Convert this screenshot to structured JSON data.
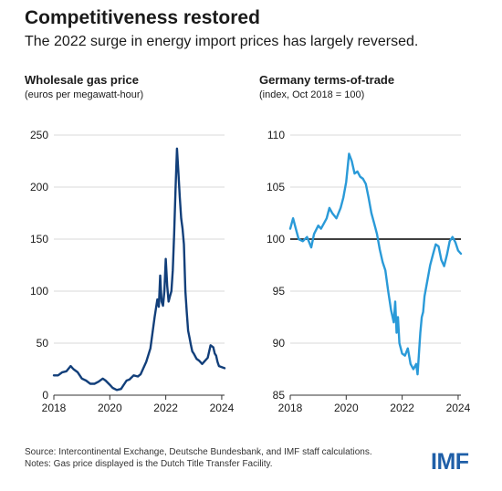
{
  "header": {
    "title": "Competitiveness restored",
    "subtitle": "The 2022 surge in energy import prices has largely reversed."
  },
  "footer": {
    "source": "Source: Intercontinental Exchange, Deutsche Bundesbank, and IMF staff calculations.",
    "notes": "Notes: Gas price displayed is the Dutch Title Transfer Facility.",
    "logo": "IMF"
  },
  "colors": {
    "gas_line": "#123f7a",
    "tot_line": "#2a9ad8",
    "reference_line": "#000000",
    "grid": "#d9d9d9"
  },
  "chart_data": [
    {
      "type": "line",
      "title": "Wholesale gas price",
      "subtitle": "(euros per megawatt-hour)",
      "xlim": [
        2018,
        2024.1
      ],
      "ylim": [
        0,
        250
      ],
      "xticks": [
        "2018",
        "2020",
        "2022",
        "2024"
      ],
      "yticks": [
        "0",
        "50",
        "100",
        "150",
        "200",
        "250"
      ],
      "grid": true,
      "series": [
        {
          "x": [
            2018.0,
            2018.15,
            2018.3,
            2018.45,
            2018.6,
            2018.7,
            2018.85,
            2019.0,
            2019.15,
            2019.3,
            2019.45,
            2019.6,
            2019.75,
            2019.85,
            2020.0,
            2020.1,
            2020.25,
            2020.4,
            2020.5,
            2020.6,
            2020.7,
            2020.85,
            2021.0,
            2021.1,
            2021.2,
            2021.3,
            2021.45,
            2021.6,
            2021.7,
            2021.75,
            2021.8,
            2021.85,
            2021.9,
            2021.95,
            2022.0,
            2022.05,
            2022.1,
            2022.15,
            2022.2,
            2022.25,
            2022.3,
            2022.35,
            2022.4,
            2022.45,
            2022.5,
            2022.55,
            2022.6,
            2022.65,
            2022.7,
            2022.75,
            2022.8,
            2022.85,
            2022.9,
            2022.95,
            2023.0,
            2023.1,
            2023.2,
            2023.3,
            2023.4,
            2023.5,
            2023.6,
            2023.7,
            2023.75,
            2023.8,
            2023.85,
            2023.9,
            2024.0,
            2024.1
          ],
          "y": [
            19,
            19,
            22,
            23,
            28,
            25,
            22,
            16,
            14,
            11,
            11,
            13,
            16,
            14,
            10,
            7,
            5,
            6,
            10,
            14,
            15,
            19,
            18,
            20,
            26,
            32,
            45,
            75,
            92,
            85,
            115,
            90,
            86,
            100,
            131,
            105,
            90,
            95,
            100,
            120,
            155,
            200,
            237,
            215,
            190,
            170,
            160,
            145,
            100,
            80,
            62,
            55,
            48,
            42,
            40,
            35,
            33,
            30,
            33,
            36,
            48,
            46,
            40,
            38,
            32,
            28,
            27,
            26
          ]
        }
      ]
    },
    {
      "type": "line",
      "title": "Germany terms-of-trade",
      "subtitle": "(index, Oct 2018 = 100)",
      "xlim": [
        2018,
        2024.1
      ],
      "ylim": [
        85,
        110
      ],
      "xticks": [
        "2018",
        "2020",
        "2022",
        "2024"
      ],
      "yticks": [
        "85",
        "90",
        "95",
        "100",
        "105",
        "110"
      ],
      "reference_line": 100,
      "grid": true,
      "series": [
        {
          "x": [
            2018.0,
            2018.1,
            2018.2,
            2018.3,
            2018.45,
            2018.6,
            2018.75,
            2018.85,
            2019.0,
            2019.1,
            2019.2,
            2019.3,
            2019.4,
            2019.5,
            2019.65,
            2019.8,
            2019.9,
            2020.0,
            2020.1,
            2020.2,
            2020.3,
            2020.4,
            2020.5,
            2020.6,
            2020.7,
            2020.8,
            2020.9,
            2021.0,
            2021.1,
            2021.2,
            2021.3,
            2021.4,
            2021.5,
            2021.6,
            2021.7,
            2021.75,
            2021.8,
            2021.85,
            2021.9,
            2022.0,
            2022.1,
            2022.2,
            2022.3,
            2022.4,
            2022.5,
            2022.55,
            2022.6,
            2022.65,
            2022.7,
            2022.75,
            2022.8,
            2022.9,
            2023.0,
            2023.1,
            2023.2,
            2023.3,
            2023.4,
            2023.5,
            2023.6,
            2023.7,
            2023.8,
            2023.9,
            2024.0,
            2024.1
          ],
          "y": [
            101,
            102,
            101,
            100,
            99.8,
            100.2,
            99.2,
            100.5,
            101.3,
            101,
            101.5,
            102,
            103,
            102.5,
            102,
            103,
            104,
            105.5,
            108.2,
            107.5,
            106.3,
            106.5,
            106,
            105.8,
            105.3,
            104,
            102.5,
            101.5,
            100.5,
            99,
            97.8,
            97,
            95,
            93.2,
            92,
            94,
            91,
            92.5,
            90,
            89,
            88.8,
            89.5,
            88,
            87.5,
            88,
            87,
            89,
            91,
            92.5,
            93,
            94.5,
            96,
            97.5,
            98.5,
            99.5,
            99.3,
            98,
            97.4,
            98.5,
            99.8,
            100.2,
            99.7,
            98.9,
            98.6
          ]
        }
      ]
    }
  ]
}
